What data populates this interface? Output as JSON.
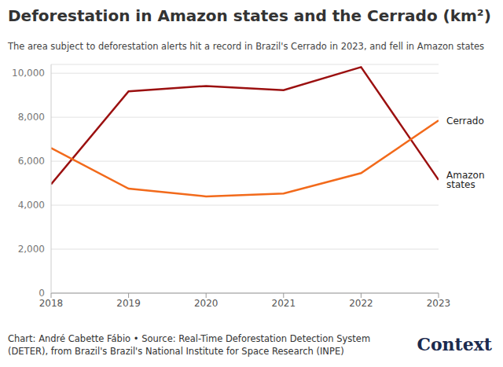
{
  "chart_data": {
    "type": "line",
    "title": "Deforestation in Amazon states and the Cerrado (km²)",
    "subtitle": "The area subject to deforestation alerts hit a record in Brazil's Cerrado in 2023, and fell in Amazon states",
    "source": "Chart: André Cabette Fábio • Source: Real-Time Deforestation Detection System (DETER), from Brazil's Brazil's National Institute for Space Research (INPE)",
    "logo": "Context",
    "x": [
      2018,
      2019,
      2020,
      2021,
      2022,
      2023
    ],
    "xlim": [
      2018,
      2023
    ],
    "xticks": [
      2018,
      2019,
      2020,
      2021,
      2022,
      2023
    ],
    "ylim": [
      0,
      10400
    ],
    "yticks": [
      0,
      {
        "value": 2000,
        "label": "2,000"
      },
      {
        "value": 4000,
        "label": "4,000"
      },
      {
        "value": 6000,
        "label": "6,000"
      },
      {
        "value": 8000,
        "label": "8,000"
      },
      {
        "value": 10000,
        "label": "10,000"
      }
    ],
    "grid": true,
    "series": [
      {
        "name": "Amazon states",
        "color": "#9b1010",
        "values": [
          4950,
          9180,
          9420,
          9230,
          10280,
          5150
        ]
      },
      {
        "name": "Cerrado",
        "color": "#f26a1b",
        "values": [
          6600,
          4750,
          4400,
          4530,
          5460,
          7850
        ]
      }
    ]
  }
}
